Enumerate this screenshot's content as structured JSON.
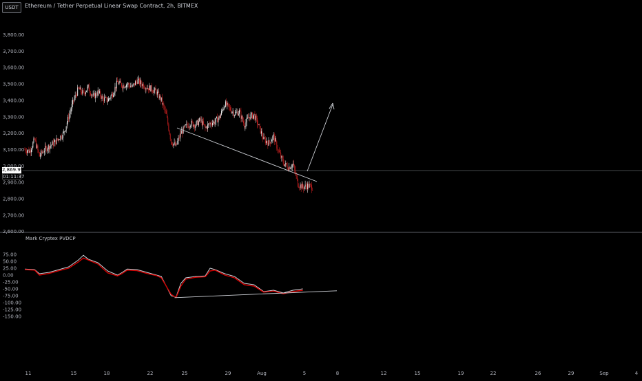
{
  "header": {
    "currency_badge": "USDT",
    "title": "Ethereum / Tether Perpetual Linear Swap Contract, 2h, BITMEX"
  },
  "price_tags": {
    "last_price": "2,869.99",
    "countdown": "01:11:37"
  },
  "indicator": {
    "name": "Mark Cryptex PVDCP"
  },
  "colors": {
    "background": "#000000",
    "up_candle": "#e6e6e6",
    "down_candle": "#b71c1c",
    "line_white": "#cfd2d8",
    "line_red": "#d50000",
    "separator": "#6b6e76"
  },
  "chart_data": [
    {
      "type": "candlestick",
      "title": "Ethereum / Tether Perpetual Linear Swap Contract, 2h, BITMEX",
      "ylim": [
        2500,
        3800
      ],
      "y_ticks": [
        "3,800.00",
        "3,700.00",
        "3,600.00",
        "3,500.00",
        "3,400.00",
        "3,300.00",
        "3,200.00",
        "3,100.00",
        "3,000.00",
        "2,900.00",
        "2,800.00",
        "2,700.00",
        "2,600.00"
      ],
      "last_price": 2869.99,
      "close_path": [
        [
          0,
          3100
        ],
        [
          6,
          3090
        ],
        [
          12,
          3160
        ],
        [
          18,
          3060
        ],
        [
          24,
          3100
        ],
        [
          30,
          3120
        ],
        [
          36,
          3140
        ],
        [
          42,
          3170
        ],
        [
          48,
          3200
        ],
        [
          54,
          3300
        ],
        [
          60,
          3400
        ],
        [
          66,
          3470
        ],
        [
          72,
          3440
        ],
        [
          78,
          3480
        ],
        [
          84,
          3420
        ],
        [
          90,
          3450
        ],
        [
          96,
          3410
        ],
        [
          102,
          3400
        ],
        [
          108,
          3440
        ],
        [
          114,
          3510
        ],
        [
          120,
          3490
        ],
        [
          126,
          3500
        ],
        [
          132,
          3480
        ],
        [
          138,
          3520
        ],
        [
          144,
          3500
        ],
        [
          150,
          3480
        ],
        [
          156,
          3470
        ],
        [
          162,
          3450
        ],
        [
          168,
          3400
        ],
        [
          174,
          3310
        ],
        [
          180,
          3150
        ],
        [
          186,
          3120
        ],
        [
          192,
          3200
        ],
        [
          198,
          3240
        ],
        [
          204,
          3260
        ],
        [
          210,
          3250
        ],
        [
          216,
          3280
        ],
        [
          222,
          3230
        ],
        [
          228,
          3260
        ],
        [
          234,
          3270
        ],
        [
          240,
          3300
        ],
        [
          246,
          3380
        ],
        [
          252,
          3350
        ],
        [
          258,
          3320
        ],
        [
          264,
          3330
        ],
        [
          270,
          3250
        ],
        [
          276,
          3300
        ],
        [
          282,
          3310
        ],
        [
          288,
          3240
        ],
        [
          294,
          3160
        ],
        [
          300,
          3140
        ],
        [
          306,
          3180
        ],
        [
          312,
          3090
        ],
        [
          318,
          3020
        ],
        [
          324,
          2990
        ],
        [
          330,
          3010
        ],
        [
          336,
          2890
        ],
        [
          342,
          2870
        ],
        [
          348,
          2880
        ],
        [
          354,
          2869.99
        ]
      ],
      "annotations": {
        "trendline": [
          [
            3180,
            3120
          ],
          [
            3300,
            2790
          ]
        ],
        "projection_arrow": [
          [
            2870,
            2870
          ],
          [
            3270,
            3270
          ]
        ]
      }
    },
    {
      "type": "line",
      "name": "Mark Cryptex PVDCP",
      "ylim": [
        -160,
        80
      ],
      "y_ticks": [
        "75.00",
        "50.00",
        "25.00",
        "0.00",
        "-25.00",
        "-50.00",
        "-75.00",
        "-100.00",
        "-125.00",
        "-150.00"
      ],
      "x_ticks": [
        "11",
        "15",
        "18",
        "22",
        "25",
        "29",
        "Aug",
        "5",
        "8",
        "12",
        "15",
        "19",
        "22",
        "26",
        "29",
        "Sep",
        "4"
      ],
      "series": [
        {
          "color": "#cfd2d8",
          "values": [
            [
              0,
              22
            ],
            [
              12,
              20
            ],
            [
              18,
              5
            ],
            [
              30,
              10
            ],
            [
              42,
              20
            ],
            [
              54,
              30
            ],
            [
              66,
              55
            ],
            [
              72,
              72
            ],
            [
              78,
              58
            ],
            [
              90,
              45
            ],
            [
              102,
              15
            ],
            [
              114,
              0
            ],
            [
              120,
              10
            ],
            [
              126,
              22
            ],
            [
              138,
              20
            ],
            [
              150,
              10
            ],
            [
              162,
              0
            ],
            [
              168,
              -5
            ],
            [
              180,
              -75
            ],
            [
              186,
              -80
            ],
            [
              192,
              -30
            ],
            [
              198,
              -10
            ],
            [
              210,
              -5
            ],
            [
              222,
              -3
            ],
            [
              228,
              25
            ],
            [
              234,
              20
            ],
            [
              246,
              5
            ],
            [
              258,
              -5
            ],
            [
              270,
              -30
            ],
            [
              282,
              -35
            ],
            [
              294,
              -60
            ],
            [
              306,
              -55
            ],
            [
              318,
              -65
            ],
            [
              330,
              -55
            ],
            [
              342,
              -50
            ]
          ]
        },
        {
          "color": "#d50000",
          "values": [
            [
              0,
              20
            ],
            [
              12,
              18
            ],
            [
              18,
              0
            ],
            [
              30,
              6
            ],
            [
              42,
              16
            ],
            [
              54,
              25
            ],
            [
              66,
              48
            ],
            [
              72,
              62
            ],
            [
              78,
              55
            ],
            [
              90,
              40
            ],
            [
              102,
              8
            ],
            [
              114,
              -3
            ],
            [
              120,
              6
            ],
            [
              126,
              18
            ],
            [
              138,
              16
            ],
            [
              150,
              6
            ],
            [
              162,
              -2
            ],
            [
              168,
              -10
            ],
            [
              180,
              -70
            ],
            [
              186,
              -82
            ],
            [
              192,
              -40
            ],
            [
              198,
              -15
            ],
            [
              210,
              -8
            ],
            [
              222,
              -6
            ],
            [
              228,
              15
            ],
            [
              234,
              18
            ],
            [
              246,
              0
            ],
            [
              258,
              -10
            ],
            [
              270,
              -35
            ],
            [
              282,
              -40
            ],
            [
              294,
              -62
            ],
            [
              306,
              -58
            ],
            [
              318,
              -68
            ],
            [
              330,
              -60
            ],
            [
              342,
              -55
            ]
          ]
        }
      ],
      "annotations": {
        "trendline": [
          [
            186,
            -82
          ],
          [
            350,
            -57
          ]
        ]
      }
    }
  ]
}
